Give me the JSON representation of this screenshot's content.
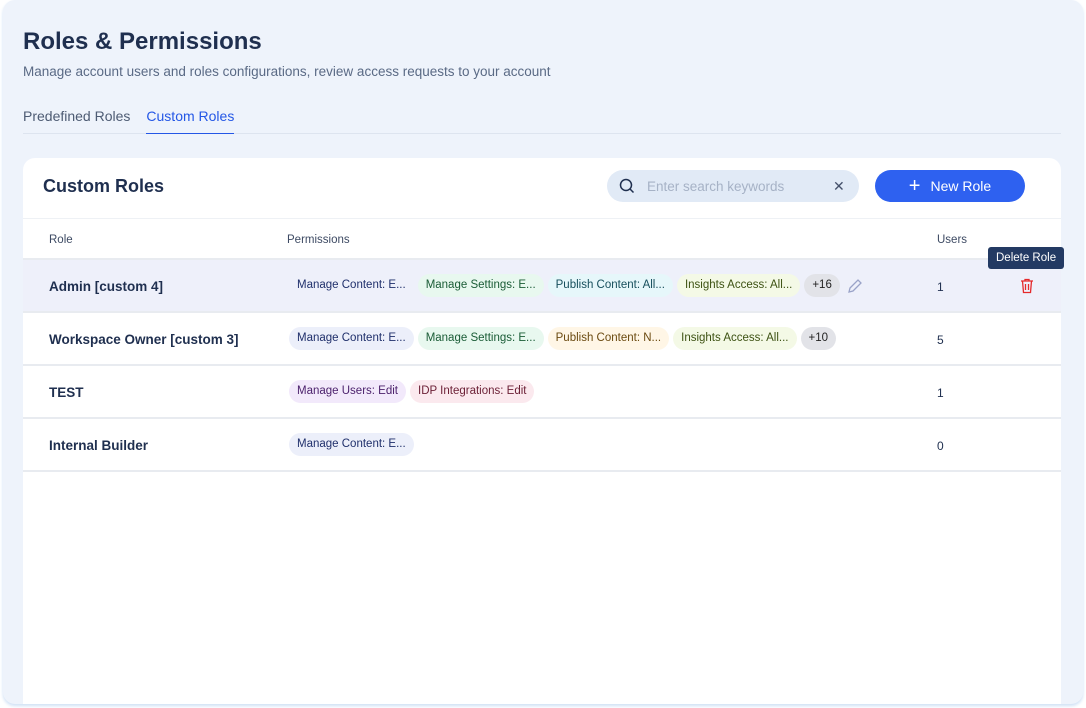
{
  "header": {
    "title": "Roles & Permissions",
    "subtitle": "Manage account users and roles configurations, review access requests to your account"
  },
  "tabs": [
    {
      "label": "Predefined Roles",
      "active": false
    },
    {
      "label": "Custom Roles",
      "active": true
    }
  ],
  "card": {
    "title": "Custom Roles",
    "search_placeholder": "Enter search keywords",
    "new_role_label": "New Role"
  },
  "columns": {
    "role": "Role",
    "permissions": "Permissions",
    "users": "Users"
  },
  "tooltip": "Delete Role",
  "colors": {
    "accent": "#2e61f0",
    "delete": "#e5292b"
  },
  "rows": [
    {
      "name": "Admin [custom 4]",
      "users": "1",
      "chips": [
        {
          "label": "Manage Content: E...",
          "bg": "#eef0fa",
          "fg": "#1f2f6b"
        },
        {
          "label": "Manage Settings: E...",
          "bg": "#e8f8ef",
          "fg": "#1a5c36"
        },
        {
          "label": "Publish Content: All...",
          "bg": "#e6f7fa",
          "fg": "#174f5c"
        },
        {
          "label": "Insights Access: All...",
          "bg": "#f4f9e6",
          "fg": "#3d5213"
        },
        {
          "label": "+16",
          "bg": "#e2e3e8",
          "fg": "#222"
        }
      ]
    },
    {
      "name": "Workspace Owner [custom 3]",
      "users": "5",
      "chips": [
        {
          "label": "Manage Content: E...",
          "bg": "#eceffa",
          "fg": "#1f2f6b"
        },
        {
          "label": "Manage Settings: E...",
          "bg": "#e8f8ef",
          "fg": "#1a5c36"
        },
        {
          "label": "Publish Content: N...",
          "bg": "#fff6e6",
          "fg": "#6b4a10"
        },
        {
          "label": "Insights Access: All...",
          "bg": "#f4f9e6",
          "fg": "#3d5213"
        },
        {
          "label": "+10",
          "bg": "#e2e3e8",
          "fg": "#222"
        }
      ]
    },
    {
      "name": "TEST",
      "users": "1",
      "chips": [
        {
          "label": "Manage Users: Edit",
          "bg": "#f2e9fb",
          "fg": "#4a1f6b"
        },
        {
          "label": "IDP Integrations: Edit",
          "bg": "#fbe9ee",
          "fg": "#6b1f35"
        }
      ]
    },
    {
      "name": "Internal Builder",
      "users": "0",
      "chips": [
        {
          "label": "Manage Content: E...",
          "bg": "#eceffa",
          "fg": "#1f2f6b"
        }
      ]
    }
  ]
}
